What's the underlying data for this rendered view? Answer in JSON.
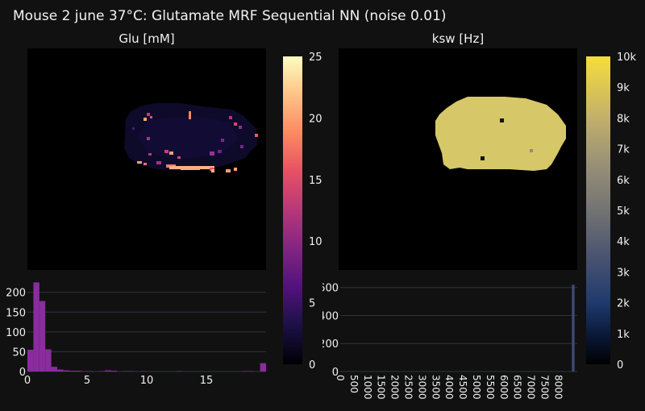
{
  "title": "Mouse 2 june 37°C: Glutamate MRF Sequential NN (noise 0.01)",
  "chart_data": [
    {
      "type": "heatmap",
      "title": "Glu [mM]",
      "colorscale": "magma",
      "colorbar": {
        "range": [
          0,
          25
        ],
        "ticks": [
          "0",
          "5",
          "10",
          "15",
          "20",
          "25"
        ]
      },
      "grid_on": false
    },
    {
      "type": "heatmap",
      "title": "ksw [Hz]",
      "colorscale": "cividis",
      "colorbar": {
        "range": [
          0,
          10000
        ],
        "ticks": [
          "0",
          "1k",
          "2k",
          "3k",
          "4k",
          "5k",
          "6k",
          "7k",
          "8k",
          "9k",
          "10k"
        ]
      },
      "grid_on": false
    },
    {
      "type": "bar",
      "title": "",
      "xlabel": "",
      "ylabel": "",
      "xlim": [
        0,
        20
      ],
      "ylim": [
        0,
        230
      ],
      "bin_width": 0.5,
      "x_ticks": [
        "0",
        "5",
        "10",
        "15"
      ],
      "y_ticks": [
        "0",
        "50",
        "100",
        "150",
        "200"
      ],
      "color": "#8a2c9e",
      "values": [
        55,
        225,
        178,
        56,
        12,
        5,
        3,
        2,
        2,
        1,
        1,
        0,
        1,
        3,
        2,
        0,
        1,
        1,
        0,
        1,
        0,
        0,
        0,
        0,
        0,
        1,
        0,
        0,
        0,
        0,
        0,
        0,
        0,
        0,
        0,
        0,
        1,
        1,
        0,
        21
      ]
    },
    {
      "type": "bar",
      "title": "",
      "xlabel": "",
      "ylabel": "",
      "xlim": [
        0,
        8700
      ],
      "ylim": [
        0,
        650
      ],
      "bin_width": 100,
      "x_ticks": [
        "0",
        "500",
        "1000",
        "1500",
        "2000",
        "2500",
        "3000",
        "3500",
        "4000",
        "4500",
        "5000",
        "5500",
        "6000",
        "6500",
        "7000",
        "7500",
        "8000"
      ],
      "y_ticks": [
        "0",
        "200",
        "400",
        "600"
      ],
      "color": "#3d4a73",
      "bars": [
        {
          "x": 8500,
          "value": 620
        }
      ]
    }
  ]
}
